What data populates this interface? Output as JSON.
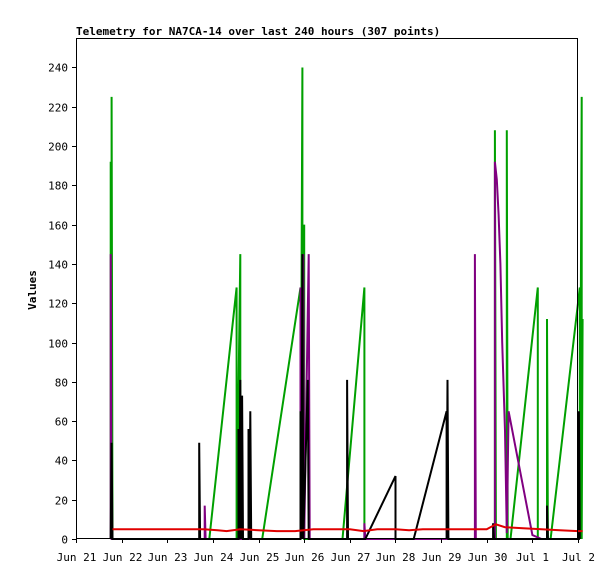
{
  "chart_data": {
    "type": "line",
    "title": "Telemetry for NA7CA-14 over last 240 hours (307 points)",
    "xlabel": "",
    "ylabel": "Values",
    "xlim": [
      0,
      11
    ],
    "ylim": [
      0,
      255
    ],
    "grid": false,
    "legend": "none",
    "x_tick_labels": [
      "Jun 21",
      "Jun 22",
      "Jun 23",
      "Jun 24",
      "Jun 25",
      "Jun 26",
      "Jun 27",
      "Jun 28",
      "Jun 29",
      "Jun 30",
      "Jul 1",
      "Jul 2"
    ],
    "x_tick_values": [
      0,
      1,
      2,
      3,
      4,
      5,
      6,
      7,
      8,
      9,
      10,
      11
    ],
    "y_ticks": [
      0,
      20,
      40,
      60,
      80,
      100,
      120,
      140,
      160,
      180,
      200,
      220,
      240
    ],
    "series": [
      {
        "color": "#00a000",
        "points": [
          [
            0.76,
            0
          ],
          [
            0.76,
            192
          ],
          [
            0.78,
            0
          ],
          [
            0.78,
            225
          ],
          [
            0.8,
            0
          ],
          [
            2.92,
            0
          ],
          [
            3.52,
            128
          ],
          [
            3.52,
            0
          ],
          [
            3.6,
            145
          ],
          [
            3.6,
            0
          ],
          [
            4.08,
            0
          ],
          [
            4.92,
            128
          ],
          [
            4.92,
            0
          ],
          [
            4.96,
            240
          ],
          [
            4.96,
            0
          ],
          [
            5.0,
            160
          ],
          [
            5.0,
            0
          ],
          [
            5.84,
            0
          ],
          [
            6.32,
            128
          ],
          [
            6.32,
            0
          ],
          [
            9.18,
            0
          ],
          [
            9.18,
            208
          ],
          [
            9.2,
            0
          ],
          [
            9.44,
            0
          ],
          [
            9.44,
            208
          ],
          [
            9.46,
            0
          ],
          [
            9.52,
            0
          ],
          [
            10.12,
            128
          ],
          [
            10.12,
            0
          ],
          [
            10.32,
            0
          ],
          [
            10.32,
            112
          ],
          [
            10.34,
            0
          ],
          [
            10.4,
            0
          ],
          [
            11.04,
            128
          ],
          [
            11.04,
            0
          ],
          [
            11.08,
            225
          ],
          [
            11.08,
            0
          ],
          [
            11.1,
            112
          ]
        ]
      },
      {
        "color": "#800080",
        "points": [
          [
            0.76,
            0
          ],
          [
            0.76,
            145
          ],
          [
            0.78,
            0
          ],
          [
            2.82,
            0
          ],
          [
            2.82,
            17
          ],
          [
            2.84,
            0
          ],
          [
            4.92,
            0
          ],
          [
            4.92,
            128
          ],
          [
            4.94,
            0
          ],
          [
            4.98,
            145
          ],
          [
            5.0,
            0
          ],
          [
            5.1,
            145
          ],
          [
            5.12,
            0
          ],
          [
            6.32,
            0
          ],
          [
            6.32,
            8
          ],
          [
            6.34,
            0
          ],
          [
            8.74,
            0
          ],
          [
            8.74,
            145
          ],
          [
            8.76,
            0
          ],
          [
            9.18,
            0
          ],
          [
            9.18,
            192
          ],
          [
            9.22,
            183
          ],
          [
            9.26,
            165
          ],
          [
            9.3,
            140
          ],
          [
            9.34,
            100
          ],
          [
            9.4,
            55
          ],
          [
            9.44,
            3
          ],
          [
            9.48,
            65
          ],
          [
            10.0,
            2
          ],
          [
            10.2,
            0
          ],
          [
            10.22,
            0
          ]
        ]
      },
      {
        "color": "#000000",
        "points": [
          [
            0.76,
            0
          ],
          [
            0.78,
            49
          ],
          [
            0.8,
            0
          ],
          [
            2.7,
            0
          ],
          [
            2.7,
            49
          ],
          [
            2.72,
            0
          ],
          [
            3.56,
            0
          ],
          [
            3.56,
            56
          ],
          [
            3.58,
            0
          ],
          [
            3.6,
            81
          ],
          [
            3.62,
            0
          ],
          [
            3.64,
            73
          ],
          [
            3.66,
            0
          ],
          [
            3.78,
            0
          ],
          [
            3.78,
            56
          ],
          [
            3.8,
            0
          ],
          [
            3.82,
            65
          ],
          [
            3.84,
            0
          ],
          [
            4.92,
            0
          ],
          [
            4.92,
            65
          ],
          [
            4.94,
            0
          ],
          [
            4.96,
            145
          ],
          [
            4.98,
            0
          ],
          [
            5.08,
            81
          ],
          [
            5.1,
            0
          ],
          [
            5.94,
            0
          ],
          [
            5.94,
            81
          ],
          [
            5.96,
            0
          ],
          [
            6.34,
            0
          ],
          [
            7.0,
            32
          ],
          [
            7.0,
            0
          ],
          [
            7.4,
            0
          ],
          [
            8.12,
            65
          ],
          [
            8.12,
            0
          ],
          [
            8.14,
            81
          ],
          [
            8.16,
            0
          ],
          [
            9.14,
            0
          ],
          [
            9.14,
            8
          ],
          [
            9.16,
            0
          ],
          [
            10.32,
            0
          ],
          [
            10.32,
            17
          ],
          [
            10.34,
            0
          ],
          [
            11.02,
            0
          ],
          [
            11.02,
            65
          ],
          [
            11.04,
            0
          ]
        ]
      },
      {
        "color": "#e00000",
        "points": [
          [
            0.8,
            5
          ],
          [
            2.8,
            5
          ],
          [
            3.1,
            4.5
          ],
          [
            3.3,
            4
          ],
          [
            3.6,
            5
          ],
          [
            4.0,
            4.5
          ],
          [
            4.4,
            4
          ],
          [
            4.8,
            4
          ],
          [
            5.2,
            5
          ],
          [
            6.0,
            5
          ],
          [
            6.3,
            4
          ],
          [
            6.6,
            5
          ],
          [
            7.0,
            5
          ],
          [
            7.3,
            4.5
          ],
          [
            7.6,
            5
          ],
          [
            8.0,
            5
          ],
          [
            9.0,
            5
          ],
          [
            9.2,
            7.5
          ],
          [
            9.4,
            6
          ],
          [
            9.8,
            5.5
          ],
          [
            10.2,
            5
          ],
          [
            10.6,
            4.5
          ],
          [
            11.0,
            4
          ],
          [
            11.1,
            4
          ]
        ]
      }
    ]
  }
}
